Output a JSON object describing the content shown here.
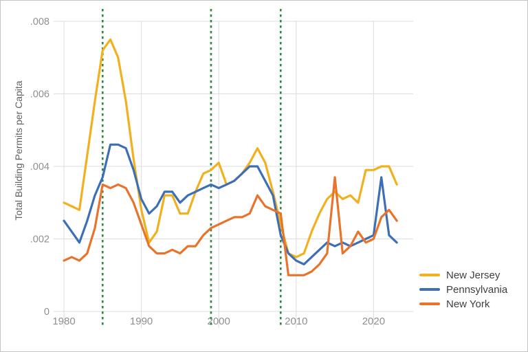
{
  "figure": {
    "background": "#ffffff",
    "border_color": "#c3c3c3"
  },
  "chart_data": {
    "type": "line",
    "title": "",
    "xlabel": "",
    "ylabel": "Total Building Permits per Capita",
    "grid": true,
    "legend_position": "bottom-right-outside",
    "xlim": [
      1979,
      2024.5
    ],
    "ylim": [
      0,
      0.008
    ],
    "xticks": [
      {
        "value": 1980,
        "label": "1980"
      },
      {
        "value": 1990,
        "label": "1990"
      },
      {
        "value": 2000,
        "label": "2000"
      },
      {
        "value": 2010,
        "label": "2010"
      },
      {
        "value": 2020,
        "label": "2020"
      }
    ],
    "yticks": [
      {
        "value": 0,
        "label": "0"
      },
      {
        "value": 0.002,
        "label": ".002"
      },
      {
        "value": 0.004,
        "label": ".004"
      },
      {
        "value": 0.006,
        "label": ".006"
      },
      {
        "value": 0.008,
        "label": ".008"
      }
    ],
    "reference_lines": {
      "style": "dashed",
      "color": "#2e8b44",
      "years": [
        1985,
        1999,
        2008
      ]
    },
    "x": [
      1980,
      1981,
      1982,
      1983,
      1984,
      1985,
      1986,
      1987,
      1988,
      1989,
      1990,
      1991,
      1992,
      1993,
      1994,
      1995,
      1996,
      1997,
      1998,
      1999,
      2000,
      2001,
      2002,
      2003,
      2004,
      2005,
      2006,
      2007,
      2008,
      2009,
      2010,
      2011,
      2012,
      2013,
      2014,
      2015,
      2016,
      2017,
      2018,
      2019,
      2020,
      2021,
      2022,
      2023
    ],
    "series": [
      {
        "name": "New Jersey",
        "color": "#f2b01e",
        "values": [
          0.003,
          0.0029,
          0.0028,
          0.0043,
          0.0058,
          0.0072,
          0.0075,
          0.007,
          0.0058,
          0.0042,
          0.0028,
          0.0019,
          0.0022,
          0.0032,
          0.0032,
          0.0027,
          0.0027,
          0.0033,
          0.0038,
          0.0039,
          0.0041,
          0.0035,
          0.0036,
          0.0038,
          0.0041,
          0.0045,
          0.0041,
          0.0033,
          0.0024,
          0.0016,
          0.0015,
          0.0016,
          0.0022,
          0.0027,
          0.0031,
          0.0033,
          0.0031,
          0.0032,
          0.003,
          0.0039,
          0.0039,
          0.004,
          0.004,
          0.0035
        ]
      },
      {
        "name": "Pennsylvania",
        "color": "#3d6fb6",
        "values": [
          0.0025,
          0.0022,
          0.0019,
          0.0025,
          0.0032,
          0.0037,
          0.0046,
          0.0046,
          0.0045,
          0.0039,
          0.0031,
          0.0027,
          0.0029,
          0.0033,
          0.0033,
          0.003,
          0.0032,
          0.0033,
          0.0034,
          0.0035,
          0.0034,
          0.0035,
          0.0036,
          0.0038,
          0.004,
          0.004,
          0.0036,
          0.0032,
          0.0021,
          0.0016,
          0.0014,
          0.0013,
          0.0015,
          0.0017,
          0.0019,
          0.0018,
          0.0019,
          0.0018,
          0.0019,
          0.002,
          0.0021,
          0.0037,
          0.0021,
          0.0019
        ]
      },
      {
        "name": "New York",
        "color": "#e8742c",
        "values": [
          0.0014,
          0.0015,
          0.0014,
          0.0016,
          0.0023,
          0.0035,
          0.0034,
          0.0035,
          0.0034,
          0.003,
          0.0024,
          0.0018,
          0.0016,
          0.0016,
          0.0017,
          0.0016,
          0.0018,
          0.0018,
          0.0021,
          0.0023,
          0.0024,
          0.0025,
          0.0026,
          0.0026,
          0.0027,
          0.0032,
          0.0029,
          0.0028,
          0.0027,
          0.001,
          0.001,
          0.001,
          0.0011,
          0.0013,
          0.0016,
          0.0037,
          0.0016,
          0.0018,
          0.0022,
          0.0019,
          0.002,
          0.0026,
          0.0028,
          0.0025
        ]
      }
    ]
  }
}
